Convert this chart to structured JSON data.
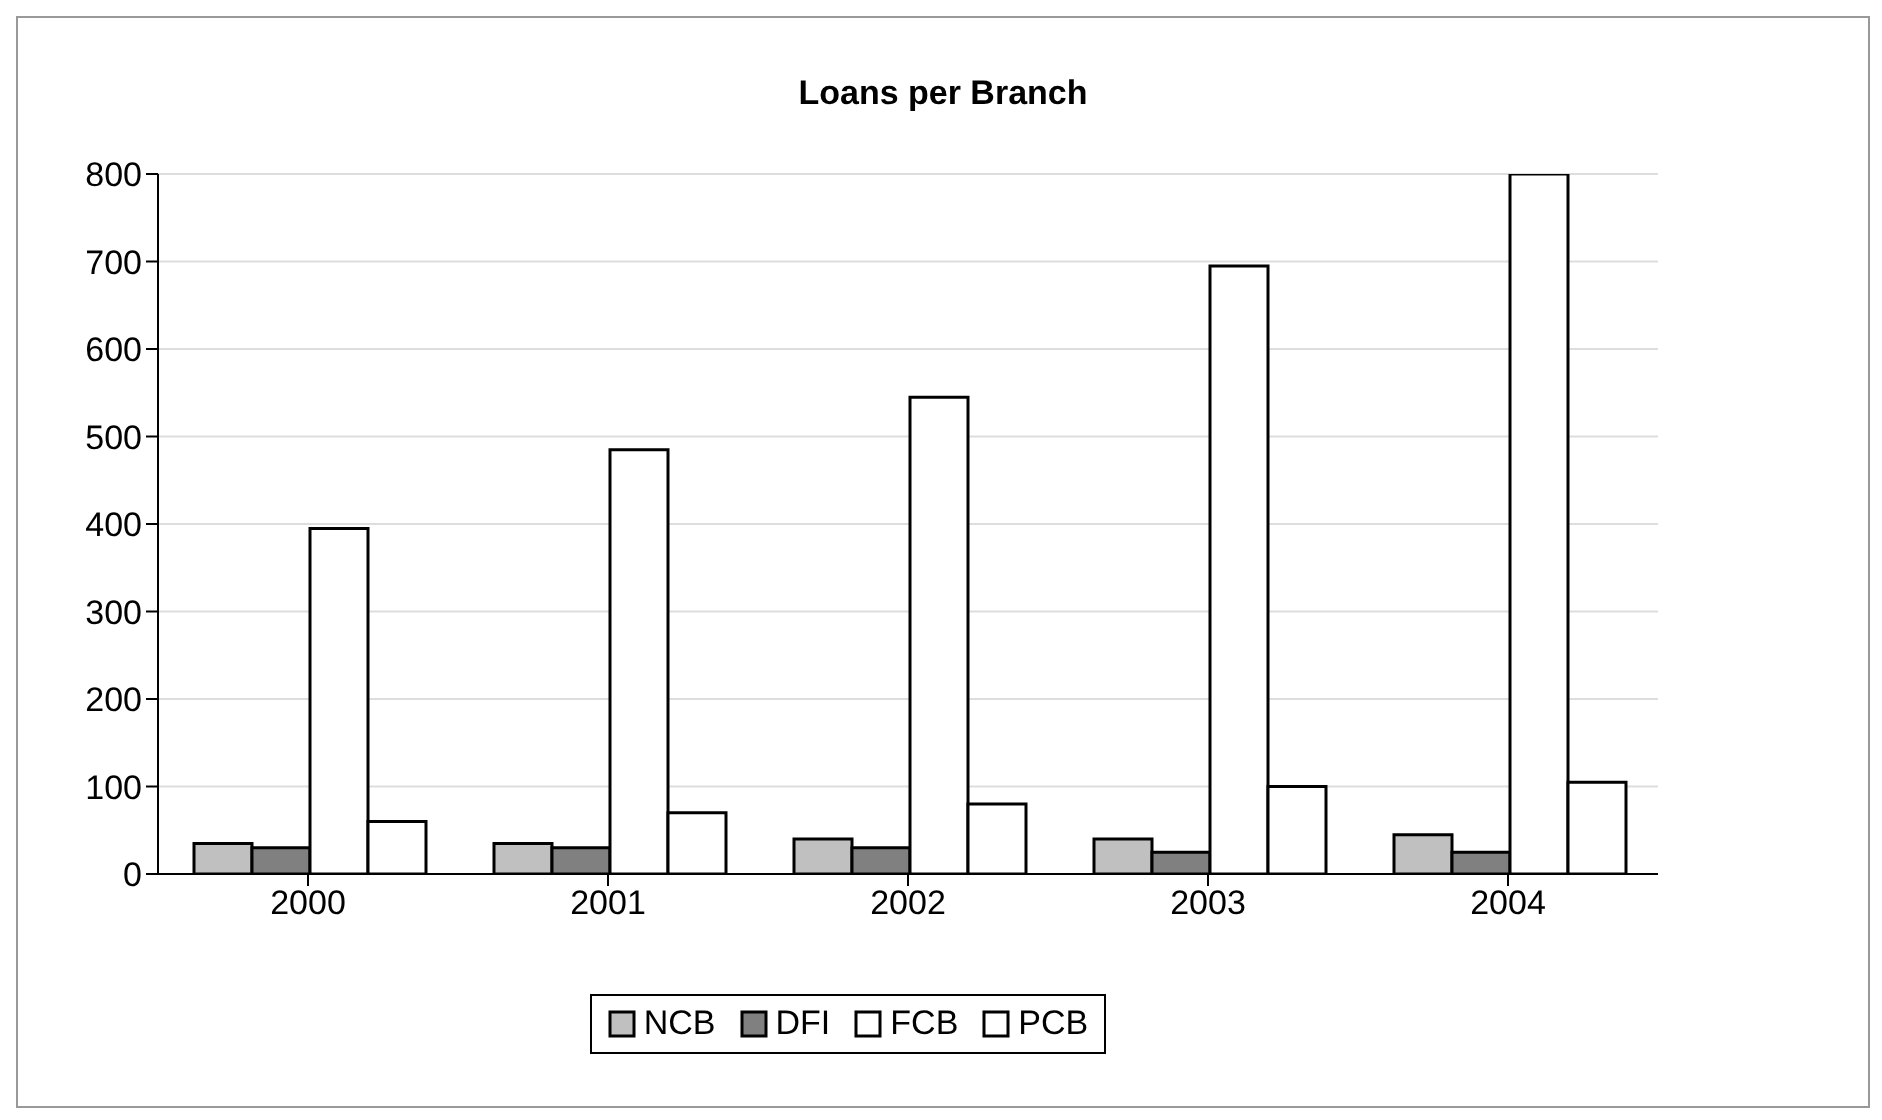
{
  "chart_data": {
    "type": "bar",
    "title": "Loans per Branch",
    "categories": [
      "2000",
      "2001",
      "2002",
      "2003",
      "2004"
    ],
    "series": [
      {
        "name": "NCB",
        "color": "#c0c0c0",
        "values": [
          35,
          35,
          40,
          40,
          45
        ]
      },
      {
        "name": "DFI",
        "color": "#808080",
        "values": [
          30,
          30,
          30,
          25,
          25
        ]
      },
      {
        "name": "FCB",
        "color": "#ffffff",
        "values": [
          395,
          485,
          545,
          695,
          800
        ]
      },
      {
        "name": "PCB",
        "color": "#ffffff",
        "values": [
          60,
          70,
          80,
          100,
          105
        ]
      }
    ],
    "ylim": [
      0,
      800
    ],
    "yticks": [
      0,
      100,
      200,
      300,
      400,
      500,
      600,
      700,
      800
    ],
    "grid": "y",
    "legend": "bottom"
  }
}
